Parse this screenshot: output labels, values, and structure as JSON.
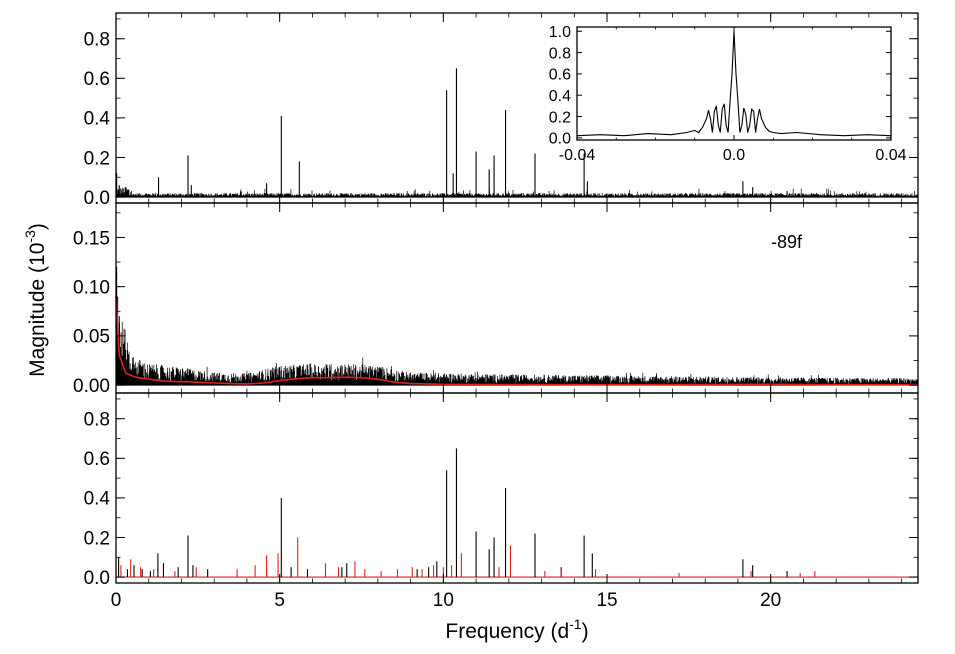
{
  "figure": {
    "ylabel_main": "Magnitude (10",
    "ylabel_exp": "-3",
    "ylabel_close": ")",
    "xlabel_main": "Frequency (d",
    "xlabel_exp": "-1",
    "xlabel_close": ")"
  },
  "colors": {
    "axis": "#000000",
    "series": "#000000",
    "red": "#e0201b"
  },
  "chart_data": [
    {
      "type": "line",
      "panel": "top",
      "title": "",
      "xlim": [
        0,
        24.5
      ],
      "ylim": [
        -0.03,
        0.93
      ],
      "yticks": [
        0.0,
        0.2,
        0.4,
        0.6,
        0.8
      ],
      "ytick_labels": [
        "0.0",
        "0.2",
        "0.4",
        "0.6",
        "0.8"
      ],
      "xticks": [
        0,
        5,
        10,
        15,
        20
      ],
      "noise_floor": 0.02,
      "peaks": [
        {
          "x": 0.02,
          "y": 0.12
        },
        {
          "x": 0.1,
          "y": 0.06
        },
        {
          "x": 0.3,
          "y": 0.05
        },
        {
          "x": 1.3,
          "y": 0.1
        },
        {
          "x": 2.2,
          "y": 0.21
        },
        {
          "x": 2.3,
          "y": 0.06
        },
        {
          "x": 4.6,
          "y": 0.07
        },
        {
          "x": 5.05,
          "y": 0.41
        },
        {
          "x": 5.6,
          "y": 0.18
        },
        {
          "x": 10.1,
          "y": 0.54
        },
        {
          "x": 10.3,
          "y": 0.12
        },
        {
          "x": 10.4,
          "y": 0.65
        },
        {
          "x": 11.0,
          "y": 0.23
        },
        {
          "x": 11.4,
          "y": 0.14
        },
        {
          "x": 11.55,
          "y": 0.21
        },
        {
          "x": 11.9,
          "y": 0.44
        },
        {
          "x": 12.8,
          "y": 0.22
        },
        {
          "x": 14.3,
          "y": 0.22
        },
        {
          "x": 14.4,
          "y": 0.08
        },
        {
          "x": 19.15,
          "y": 0.08
        },
        {
          "x": 19.45,
          "y": 0.05
        },
        {
          "x": 20.5,
          "y": 0.03
        },
        {
          "x": 21.4,
          "y": 0.02
        }
      ]
    },
    {
      "type": "line",
      "panel": "middle",
      "title": "",
      "xlim": [
        0,
        24.5
      ],
      "ylim": [
        -0.008,
        0.185
      ],
      "yticks": [
        0.0,
        0.05,
        0.1,
        0.15
      ],
      "ytick_labels": [
        "0.00",
        "0.05",
        "0.10",
        "0.15"
      ],
      "xticks": [
        0,
        5,
        10,
        15,
        20
      ],
      "annotation": "-89f",
      "series": [
        {
          "name": "",
          "color": "#e0201b",
          "x": [
            0,
            0.1,
            0.3,
            0.6,
            1.0,
            1.5,
            2.0,
            2.5,
            3.0,
            3.5,
            4.0,
            4.5,
            5.0,
            5.5,
            6.0,
            6.5,
            7.0,
            7.5,
            8.0,
            8.5,
            9.0,
            10.0,
            12.0,
            15.0,
            18.0,
            20.0,
            22.0,
            24.5
          ],
          "y": [
            0.09,
            0.03,
            0.012,
            0.008,
            0.006,
            0.004,
            0.0035,
            0.003,
            0.0022,
            0.0015,
            0.0012,
            0.0022,
            0.0045,
            0.0065,
            0.0075,
            0.0075,
            0.008,
            0.0075,
            0.006,
            0.003,
            0.0015,
            0.0008,
            0.0006,
            0.0004,
            0.0006,
            0.0008,
            0.0004,
            0.0004
          ]
        }
      ],
      "noise_profile": {
        "x": [
          0,
          0.5,
          1.0,
          2.0,
          3.0,
          4.0,
          5.0,
          6.0,
          7.0,
          8.0,
          9.0,
          12.0,
          15.0,
          20.0,
          24.5
        ],
        "amp": [
          0.09,
          0.03,
          0.022,
          0.018,
          0.013,
          0.012,
          0.02,
          0.022,
          0.022,
          0.02,
          0.013,
          0.011,
          0.01,
          0.008,
          0.007
        ]
      }
    },
    {
      "type": "bar",
      "panel": "bottom",
      "title": "",
      "xlim": [
        0,
        24.5
      ],
      "ylim": [
        -0.03,
        0.93
      ],
      "yticks": [
        0.0,
        0.2,
        0.4,
        0.6,
        0.8
      ],
      "ytick_labels": [
        "0.0",
        "0.2",
        "0.4",
        "0.6",
        "0.8"
      ],
      "xticks": [
        0,
        5,
        10,
        15,
        20
      ],
      "xtick_labels": [
        "0",
        "5",
        "10",
        "15",
        "20"
      ],
      "series": [
        {
          "name": "",
          "color": "#000000",
          "x": [
            0.08,
            0.35,
            0.55,
            0.8,
            1.05,
            1.28,
            1.45,
            1.9,
            2.2,
            2.35,
            2.8,
            4.6,
            5.05,
            5.35,
            5.85,
            6.9,
            7.05,
            9.2,
            9.55,
            9.8,
            10.1,
            10.4,
            11.0,
            11.4,
            11.55,
            11.9,
            12.8,
            13.6,
            14.3,
            14.55,
            19.15,
            19.45,
            20.5
          ],
          "y": [
            0.1,
            0.04,
            0.06,
            0.04,
            0.03,
            0.12,
            0.07,
            0.05,
            0.21,
            0.06,
            0.04,
            0.04,
            0.4,
            0.05,
            0.04,
            0.05,
            0.07,
            0.04,
            0.05,
            0.08,
            0.54,
            0.65,
            0.23,
            0.14,
            0.2,
            0.45,
            0.22,
            0.05,
            0.21,
            0.12,
            0.09,
            0.06,
            0.03
          ]
        },
        {
          "name": "",
          "color": "#e0201b",
          "x": [
            0.15,
            0.45,
            0.75,
            1.15,
            1.8,
            2.45,
            3.7,
            4.25,
            4.6,
            4.95,
            5.55,
            6.4,
            6.8,
            7.3,
            7.6,
            8.1,
            8.6,
            9.05,
            9.35,
            9.7,
            10.0,
            10.25,
            10.55,
            11.7,
            12.05,
            13.1,
            13.6,
            14.65,
            17.2,
            19.4,
            20.9,
            21.35
          ],
          "y": [
            0.06,
            0.09,
            0.05,
            0.04,
            0.03,
            0.05,
            0.04,
            0.06,
            0.11,
            0.12,
            0.2,
            0.07,
            0.05,
            0.08,
            0.04,
            0.03,
            0.04,
            0.05,
            0.04,
            0.06,
            0.05,
            0.06,
            0.12,
            0.05,
            0.16,
            0.03,
            0.04,
            0.04,
            0.02,
            0.03,
            0.02,
            0.03
          ]
        }
      ]
    },
    {
      "type": "line",
      "panel": "inset",
      "title": "",
      "xlim": [
        -0.04,
        0.04
      ],
      "ylim": [
        -0.02,
        1.04
      ],
      "yticks": [
        0.0,
        0.2,
        0.4,
        0.6,
        0.8,
        1.0
      ],
      "ytick_labels": [
        "0.0",
        "0.2",
        "0.4",
        "0.6",
        "0.8",
        "1.0"
      ],
      "xticks": [
        -0.04,
        0.0,
        0.04
      ],
      "xtick_labels": [
        "-0.04",
        "0.0",
        "0.04"
      ],
      "series": [
        {
          "name": "",
          "color": "#000000",
          "x": [
            -0.04,
            -0.034,
            -0.028,
            -0.022,
            -0.016,
            -0.012,
            -0.01,
            -0.009,
            -0.008,
            -0.007,
            -0.0065,
            -0.006,
            -0.0055,
            -0.005,
            -0.0045,
            -0.004,
            -0.0035,
            -0.003,
            -0.0025,
            -0.002,
            -0.0015,
            -0.001,
            -0.0005,
            0.0,
            0.0005,
            0.001,
            0.0015,
            0.002,
            0.0025,
            0.003,
            0.0035,
            0.004,
            0.0045,
            0.005,
            0.0055,
            0.006,
            0.0065,
            0.007,
            0.008,
            0.009,
            0.01,
            0.012,
            0.016,
            0.022,
            0.028,
            0.034,
            0.04
          ],
          "y": [
            0.02,
            0.03,
            0.02,
            0.04,
            0.03,
            0.05,
            0.07,
            0.05,
            0.1,
            0.18,
            0.26,
            0.18,
            0.05,
            0.25,
            0.3,
            0.12,
            0.05,
            0.27,
            0.32,
            0.12,
            0.05,
            0.35,
            0.6,
            1.0,
            0.6,
            0.35,
            0.05,
            0.12,
            0.28,
            0.22,
            0.05,
            0.12,
            0.27,
            0.25,
            0.05,
            0.18,
            0.27,
            0.18,
            0.1,
            0.06,
            0.05,
            0.04,
            0.05,
            0.03,
            0.02,
            0.03,
            0.02
          ]
        }
      ]
    }
  ]
}
